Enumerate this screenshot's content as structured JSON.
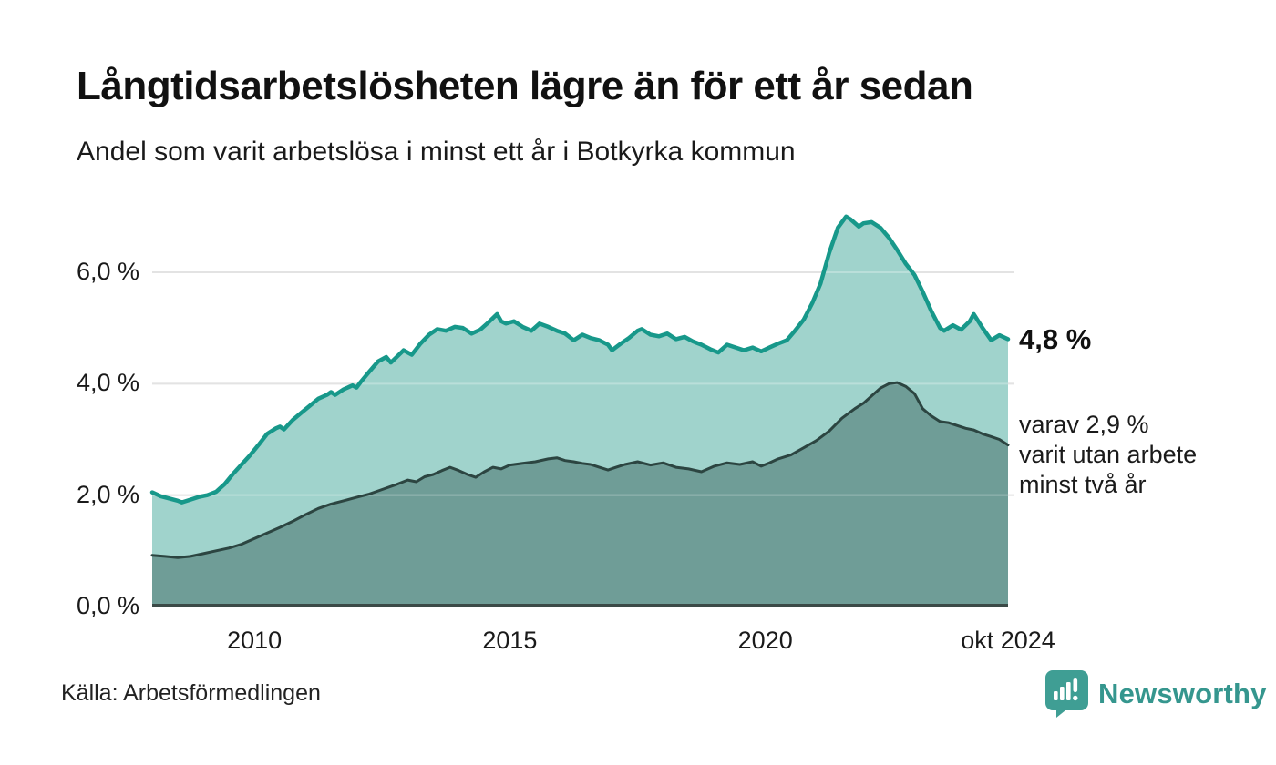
{
  "header": {
    "title": "Långtidsarbetslösheten lägre än för ett år sedan",
    "subtitle": "Andel som varit arbetslösa i minst ett år i Botkyrka kommun"
  },
  "annotations": {
    "total_value": "4,8 %",
    "subset_note": "varav 2,9 %\nvarit utan arbete\nminst två år"
  },
  "footer": {
    "source": "Källa: Arbetsförmedlingen",
    "brand": "Newsworthy"
  },
  "colors": {
    "total_line": "#17988a",
    "total_fill": "#a0d3cc",
    "subset_line": "#2c4541",
    "subset_fill": "#6f9d97",
    "grid": "#d9d9d9",
    "grid_overlay": "rgba(255,255,255,0.28)",
    "axis": "#3b4a47",
    "brand_teal": "#3f9e94",
    "text": "#1a1a1a"
  },
  "chart_data": {
    "type": "area",
    "title": "Långtidsarbetslösheten lägre än för ett år sedan",
    "subtitle": "Andel som varit arbetslösa i minst ett år i Botkyrka kommun",
    "unit": "%",
    "grid": true,
    "legend": "none (direct labels at line ends)",
    "x_range": [
      2008.0,
      2024.75
    ],
    "ylim": [
      0,
      7.15
    ],
    "y_axis": {
      "ticks": [
        {
          "label": "6,0 %",
          "value": 6.0
        },
        {
          "label": "4,0 %",
          "value": 4.0
        },
        {
          "label": "2,0 %",
          "value": 2.0
        },
        {
          "label": "0,0 %",
          "value": 0.0
        }
      ]
    },
    "x_axis": {
      "ticks": [
        {
          "label": "2010",
          "year": 2010
        },
        {
          "label": "2015",
          "year": 2015
        },
        {
          "label": "2020",
          "year": 2020
        },
        {
          "label": "okt 2024",
          "year": 2024.75
        }
      ]
    },
    "series": [
      {
        "name": "Arbetslösa minst ett år",
        "latest_label": "4,8 %",
        "latest_value": 4.8,
        "points": [
          [
            2008.0,
            2.05
          ],
          [
            2008.17,
            1.98
          ],
          [
            2008.33,
            1.94
          ],
          [
            2008.5,
            1.9
          ],
          [
            2008.58,
            1.87
          ],
          [
            2008.75,
            1.92
          ],
          [
            2008.92,
            1.97
          ],
          [
            2009.08,
            2.0
          ],
          [
            2009.25,
            2.06
          ],
          [
            2009.42,
            2.2
          ],
          [
            2009.58,
            2.38
          ],
          [
            2009.75,
            2.55
          ],
          [
            2009.92,
            2.72
          ],
          [
            2010.08,
            2.9
          ],
          [
            2010.25,
            3.1
          ],
          [
            2010.42,
            3.2
          ],
          [
            2010.5,
            3.23
          ],
          [
            2010.58,
            3.18
          ],
          [
            2010.75,
            3.35
          ],
          [
            2010.92,
            3.48
          ],
          [
            2011.08,
            3.6
          ],
          [
            2011.25,
            3.73
          ],
          [
            2011.42,
            3.8
          ],
          [
            2011.5,
            3.85
          ],
          [
            2011.58,
            3.8
          ],
          [
            2011.75,
            3.9
          ],
          [
            2011.92,
            3.97
          ],
          [
            2012.0,
            3.93
          ],
          [
            2012.08,
            4.03
          ],
          [
            2012.25,
            4.22
          ],
          [
            2012.42,
            4.4
          ],
          [
            2012.58,
            4.48
          ],
          [
            2012.67,
            4.38
          ],
          [
            2012.83,
            4.52
          ],
          [
            2012.92,
            4.6
          ],
          [
            2013.08,
            4.52
          ],
          [
            2013.25,
            4.72
          ],
          [
            2013.42,
            4.88
          ],
          [
            2013.58,
            4.98
          ],
          [
            2013.75,
            4.95
          ],
          [
            2013.92,
            5.02
          ],
          [
            2014.08,
            5.0
          ],
          [
            2014.25,
            4.9
          ],
          [
            2014.42,
            4.97
          ],
          [
            2014.58,
            5.1
          ],
          [
            2014.75,
            5.25
          ],
          [
            2014.83,
            5.12
          ],
          [
            2014.92,
            5.08
          ],
          [
            2015.08,
            5.12
          ],
          [
            2015.25,
            5.02
          ],
          [
            2015.42,
            4.95
          ],
          [
            2015.58,
            5.08
          ],
          [
            2015.75,
            5.02
          ],
          [
            2015.92,
            4.95
          ],
          [
            2016.08,
            4.9
          ],
          [
            2016.25,
            4.78
          ],
          [
            2016.42,
            4.88
          ],
          [
            2016.58,
            4.82
          ],
          [
            2016.75,
            4.78
          ],
          [
            2016.92,
            4.7
          ],
          [
            2017.0,
            4.6
          ],
          [
            2017.17,
            4.72
          ],
          [
            2017.33,
            4.82
          ],
          [
            2017.5,
            4.95
          ],
          [
            2017.58,
            4.98
          ],
          [
            2017.75,
            4.88
          ],
          [
            2017.92,
            4.85
          ],
          [
            2018.08,
            4.9
          ],
          [
            2018.25,
            4.8
          ],
          [
            2018.42,
            4.84
          ],
          [
            2018.58,
            4.76
          ],
          [
            2018.75,
            4.7
          ],
          [
            2018.92,
            4.62
          ],
          [
            2019.08,
            4.56
          ],
          [
            2019.25,
            4.7
          ],
          [
            2019.42,
            4.65
          ],
          [
            2019.58,
            4.6
          ],
          [
            2019.75,
            4.65
          ],
          [
            2019.92,
            4.58
          ],
          [
            2020.08,
            4.65
          ],
          [
            2020.25,
            4.72
          ],
          [
            2020.42,
            4.78
          ],
          [
            2020.58,
            4.95
          ],
          [
            2020.75,
            5.15
          ],
          [
            2020.92,
            5.45
          ],
          [
            2021.08,
            5.8
          ],
          [
            2021.25,
            6.35
          ],
          [
            2021.42,
            6.8
          ],
          [
            2021.58,
            7.0
          ],
          [
            2021.67,
            6.95
          ],
          [
            2021.83,
            6.82
          ],
          [
            2021.92,
            6.88
          ],
          [
            2022.08,
            6.9
          ],
          [
            2022.25,
            6.8
          ],
          [
            2022.42,
            6.62
          ],
          [
            2022.58,
            6.4
          ],
          [
            2022.75,
            6.15
          ],
          [
            2022.92,
            5.95
          ],
          [
            2023.08,
            5.65
          ],
          [
            2023.25,
            5.3
          ],
          [
            2023.42,
            5.0
          ],
          [
            2023.5,
            4.95
          ],
          [
            2023.67,
            5.05
          ],
          [
            2023.83,
            4.97
          ],
          [
            2023.92,
            5.05
          ],
          [
            2024.0,
            5.12
          ],
          [
            2024.08,
            5.25
          ],
          [
            2024.25,
            5.0
          ],
          [
            2024.42,
            4.78
          ],
          [
            2024.58,
            4.87
          ],
          [
            2024.75,
            4.8
          ]
        ]
      },
      {
        "name": "varav arbetslösa minst två år",
        "latest_label": "varav 2,9 % varit utan arbete minst två år",
        "latest_value": 2.9,
        "points": [
          [
            2008.0,
            0.92
          ],
          [
            2008.25,
            0.9
          ],
          [
            2008.5,
            0.88
          ],
          [
            2008.75,
            0.9
          ],
          [
            2009.0,
            0.95
          ],
          [
            2009.25,
            1.0
          ],
          [
            2009.5,
            1.05
          ],
          [
            2009.75,
            1.12
          ],
          [
            2010.0,
            1.22
          ],
          [
            2010.25,
            1.32
          ],
          [
            2010.5,
            1.42
          ],
          [
            2010.75,
            1.53
          ],
          [
            2011.0,
            1.65
          ],
          [
            2011.25,
            1.76
          ],
          [
            2011.5,
            1.84
          ],
          [
            2011.75,
            1.9
          ],
          [
            2012.0,
            1.96
          ],
          [
            2012.25,
            2.02
          ],
          [
            2012.5,
            2.1
          ],
          [
            2012.75,
            2.18
          ],
          [
            2013.0,
            2.27
          ],
          [
            2013.17,
            2.24
          ],
          [
            2013.33,
            2.33
          ],
          [
            2013.5,
            2.37
          ],
          [
            2013.67,
            2.44
          ],
          [
            2013.83,
            2.5
          ],
          [
            2014.0,
            2.44
          ],
          [
            2014.17,
            2.37
          ],
          [
            2014.33,
            2.32
          ],
          [
            2014.5,
            2.42
          ],
          [
            2014.67,
            2.5
          ],
          [
            2014.83,
            2.47
          ],
          [
            2015.0,
            2.54
          ],
          [
            2015.25,
            2.57
          ],
          [
            2015.5,
            2.6
          ],
          [
            2015.75,
            2.65
          ],
          [
            2015.92,
            2.67
          ],
          [
            2016.08,
            2.62
          ],
          [
            2016.25,
            2.6
          ],
          [
            2016.42,
            2.57
          ],
          [
            2016.58,
            2.55
          ],
          [
            2016.75,
            2.5
          ],
          [
            2016.92,
            2.45
          ],
          [
            2017.08,
            2.5
          ],
          [
            2017.25,
            2.55
          ],
          [
            2017.5,
            2.6
          ],
          [
            2017.75,
            2.54
          ],
          [
            2018.0,
            2.58
          ],
          [
            2018.25,
            2.5
          ],
          [
            2018.5,
            2.47
          ],
          [
            2018.75,
            2.42
          ],
          [
            2019.0,
            2.52
          ],
          [
            2019.25,
            2.58
          ],
          [
            2019.5,
            2.55
          ],
          [
            2019.75,
            2.6
          ],
          [
            2019.92,
            2.52
          ],
          [
            2020.08,
            2.58
          ],
          [
            2020.25,
            2.65
          ],
          [
            2020.5,
            2.72
          ],
          [
            2020.75,
            2.85
          ],
          [
            2021.0,
            2.98
          ],
          [
            2021.25,
            3.15
          ],
          [
            2021.5,
            3.38
          ],
          [
            2021.75,
            3.55
          ],
          [
            2021.92,
            3.65
          ],
          [
            2022.08,
            3.78
          ],
          [
            2022.25,
            3.92
          ],
          [
            2022.42,
            4.0
          ],
          [
            2022.58,
            4.02
          ],
          [
            2022.75,
            3.95
          ],
          [
            2022.92,
            3.82
          ],
          [
            2023.08,
            3.55
          ],
          [
            2023.25,
            3.42
          ],
          [
            2023.42,
            3.32
          ],
          [
            2023.58,
            3.3
          ],
          [
            2023.75,
            3.25
          ],
          [
            2023.92,
            3.2
          ],
          [
            2024.08,
            3.17
          ],
          [
            2024.25,
            3.1
          ],
          [
            2024.42,
            3.05
          ],
          [
            2024.58,
            3.0
          ],
          [
            2024.75,
            2.9
          ]
        ]
      }
    ]
  }
}
